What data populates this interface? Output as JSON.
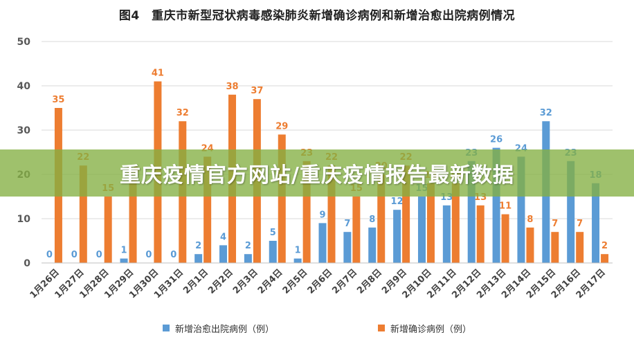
{
  "title": "图4　重庆市新型冠状病毒感染肺炎新增确诊病例和新增治愈出院病例情况",
  "banner": "重庆疫情官方网站/重庆疫情报告最新数据",
  "colors": {
    "recovered": "#5b9bd5",
    "confirmed": "#ed7d31",
    "grid": "#d9d9d9",
    "axis_text": "#595959"
  },
  "chart_data": {
    "type": "bar",
    "categories": [
      "1月26日",
      "1月27日",
      "1月28日",
      "1月29日",
      "1月30日",
      "1月31日",
      "2月1日",
      "2月2日",
      "2月3日",
      "2月4日",
      "2月5日",
      "2月6日",
      "2月7日",
      "2月8日",
      "2月9日",
      "2月10日",
      "2月11日",
      "2月12日",
      "2月13日",
      "2月14日",
      "2月15日",
      "2月16日",
      "2月17日"
    ],
    "series": [
      {
        "name": "新增治愈出院病例（例）",
        "color": "#5b9bd5",
        "values": [
          0,
          0,
          0,
          1,
          0,
          0,
          2,
          4,
          2,
          5,
          1,
          9,
          7,
          8,
          12,
          15,
          13,
          23,
          26,
          24,
          32,
          23,
          18
        ]
      },
      {
        "name": "新增确诊病例（例）",
        "color": "#ed7d31",
        "values": [
          35,
          22,
          15,
          19,
          41,
          32,
          24,
          38,
          37,
          29,
          23,
          22,
          15,
          20,
          22,
          18,
          18,
          13,
          11,
          8,
          7,
          7,
          2
        ]
      }
    ],
    "ylim": [
      0,
      50
    ],
    "yticks": [
      0,
      10,
      20,
      30,
      40,
      50
    ],
    "grid": true,
    "legend_position": "bottom"
  }
}
